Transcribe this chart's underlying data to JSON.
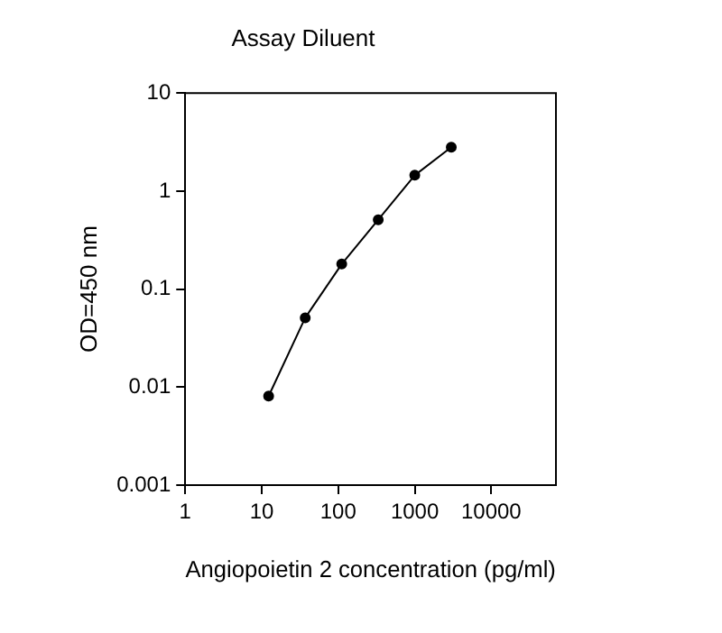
{
  "chart_data": {
    "type": "line",
    "title": "Assay Diluent",
    "xlabel": "Angiopoietin 2 concentration (pg/ml)",
    "ylabel": "OD=450 nm",
    "x": [
      12.3,
      37,
      111,
      333,
      1000,
      3000
    ],
    "series": [
      {
        "color": "#000000",
        "values": [
          0.0081,
          0.051,
          0.18,
          0.51,
          1.45,
          2.8
        ]
      }
    ],
    "log": "xy",
    "xlim": [
      1,
      70000
    ],
    "ylim": [
      0.001,
      10
    ],
    "xticks": [
      1,
      10,
      100,
      1000,
      10000
    ],
    "yticks": [
      0.001,
      0.01,
      0.1,
      1,
      10
    ],
    "grid": false,
    "legend": false,
    "marker": "circle",
    "line_style": "solid"
  }
}
